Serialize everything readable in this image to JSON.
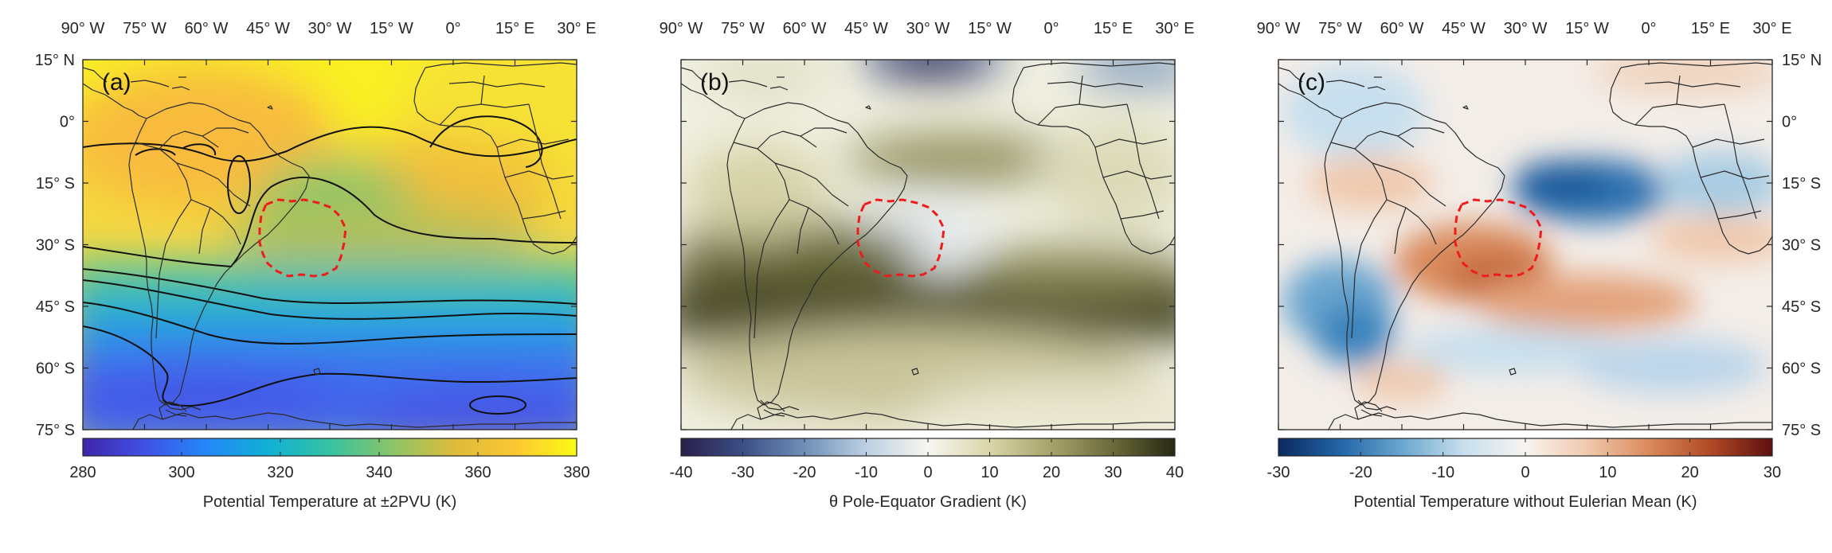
{
  "figure": {
    "panels": [
      {
        "letter": "(a)",
        "colorbar_label": "Potential Temperature at ±2PVU (K)",
        "colorbar_ticks": [
          "280",
          "300",
          "320",
          "340",
          "360",
          "380"
        ],
        "colorbar_range": [
          280,
          380
        ],
        "colormap": "parula",
        "colormap_stops": [
          "#3e26a8",
          "#4151e6",
          "#2487f9",
          "#11b0d6",
          "#35c2a2",
          "#8ac568",
          "#dcbb3c",
          "#fcc732",
          "#f9fb15"
        ],
        "has_contours": true
      },
      {
        "letter": "(b)",
        "colorbar_label": "θ Pole-Equator Gradient (K)",
        "colorbar_ticks": [
          "-40",
          "-30",
          "-20",
          "-10",
          "0",
          "10",
          "20",
          "30",
          "40"
        ],
        "colorbar_range": [
          -40,
          40
        ],
        "colormap": "diverging-blue-olive",
        "colormap_stops": [
          "#2a1f4a",
          "#3b4f86",
          "#6f8fb8",
          "#bcd0e2",
          "#f7f6ef",
          "#d9d6a8",
          "#a6a26b",
          "#6b6a3a",
          "#262812"
        ],
        "has_contours": false
      },
      {
        "letter": "(c)",
        "colorbar_label": "Potential Temperature without Eulerian Mean (K)",
        "colorbar_ticks": [
          "-30",
          "-20",
          "-10",
          "0",
          "10",
          "20",
          "30"
        ],
        "colorbar_range": [
          -30,
          30
        ],
        "colormap": "diverging-blue-red",
        "colormap_stops": [
          "#0a2a5e",
          "#2266a8",
          "#6aa6cf",
          "#c7dfee",
          "#f7f4f0",
          "#f0c9ad",
          "#d98a5b",
          "#b14a25",
          "#5e0f10"
        ],
        "has_contours": false
      }
    ],
    "lon_ticks": [
      "90° W",
      "75° W",
      "60° W",
      "45° W",
      "30° W",
      "15° W",
      "0°",
      "15° E",
      "30° E"
    ],
    "lon_values": [
      -90,
      -75,
      -60,
      -45,
      -30,
      -15,
      0,
      15,
      30
    ],
    "lat_ticks": [
      "15° N",
      "0°",
      "15° S",
      "30° S",
      "45° S",
      "60° S",
      "75° S"
    ],
    "lat_values": [
      15,
      0,
      -15,
      -30,
      -45,
      -60,
      -75
    ],
    "map_extent": {
      "lon": [
        -90,
        30
      ],
      "lat": [
        -75,
        15
      ]
    },
    "highlight_region_color": "#ee1c1c"
  }
}
